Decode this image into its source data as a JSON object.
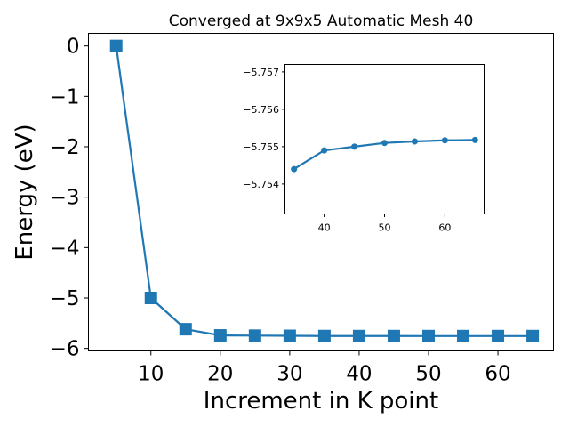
{
  "chart_data": [
    {
      "type": "line",
      "title": "Converged at 9x9x5 Automatic Mesh 40",
      "xlabel": "Increment in K point",
      "ylabel": "Energy (eV)",
      "xlim": [
        1,
        68
      ],
      "ylim": [
        -6.05,
        0.25
      ],
      "xticks": [
        10,
        20,
        30,
        40,
        50,
        60
      ],
      "xtick_labels": [
        "10",
        "20",
        "30",
        "40",
        "50",
        "60"
      ],
      "yticks": [
        0,
        -1,
        -2,
        -3,
        -4,
        -5,
        -6
      ],
      "ytick_labels": [
        "0",
        "−1",
        "−2",
        "−3",
        "−4",
        "−5",
        "−6"
      ],
      "grid": false,
      "marker": "square",
      "color": "#1f77b4",
      "x": [
        5,
        10,
        15,
        20,
        25,
        30,
        35,
        40,
        45,
        50,
        55,
        60,
        65
      ],
      "y": [
        0.0,
        -5.0,
        -5.62,
        -5.742,
        -5.747,
        -5.75,
        -5.7544,
        -5.7549,
        -5.755,
        -5.7551,
        -5.75514,
        -5.75517,
        -5.75518
      ]
    },
    {
      "type": "line",
      "role": "inset",
      "xlim": [
        33.5,
        66.5
      ],
      "ylim": [
        -5.7532,
        -5.7572
      ],
      "xticks": [
        40,
        50,
        60
      ],
      "xtick_labels": [
        "40",
        "50",
        "60"
      ],
      "yticks": [
        -5.757,
        -5.756,
        -5.755,
        -5.754
      ],
      "ytick_labels": [
        "−5.757",
        "−5.756",
        "−5.755",
        "−5.754"
      ],
      "grid": false,
      "marker": "circle",
      "color": "#1f77b4",
      "x": [
        35,
        40,
        45,
        50,
        55,
        60,
        65
      ],
      "y": [
        -5.7544,
        -5.7549,
        -5.755,
        -5.7551,
        -5.75514,
        -5.75517,
        -5.75518
      ]
    }
  ]
}
